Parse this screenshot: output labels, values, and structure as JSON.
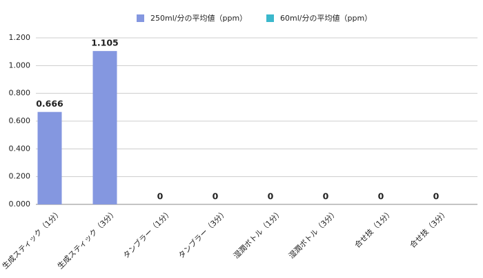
{
  "chart_data": {
    "type": "bar",
    "categories": [
      "生成スティック（1分）",
      "生成スティック（3分）",
      "タンブラー（1分）",
      "タンブラー（3分）",
      "湿潤ボトル（1分）",
      "湿潤ボトル（3分）",
      "合せ技（1分）",
      "合せ技（3分）"
    ],
    "series": [
      {
        "name": "250ml/分の平均値（ppm）",
        "color": "#8497e0",
        "values": [
          0.666,
          1.105,
          0,
          0,
          0,
          0,
          0,
          0
        ]
      },
      {
        "name": "60ml/分の平均値（ppm）",
        "color": "#3bb8cc",
        "values": [
          null,
          null,
          null,
          null,
          null,
          null,
          null,
          null
        ]
      }
    ],
    "ylim": [
      0,
      1.2
    ],
    "yticks": [
      {
        "value": 0,
        "label": "0.000"
      },
      {
        "value": 0.2,
        "label": "0.200"
      },
      {
        "value": 0.4,
        "label": "0.400"
      },
      {
        "value": 0.6,
        "label": "0.600"
      },
      {
        "value": 0.8,
        "label": "0.800"
      },
      {
        "value": 1,
        "label": "1.000"
      },
      {
        "value": 1.2,
        "label": "1.200"
      }
    ],
    "grid": true,
    "legend": "top"
  }
}
